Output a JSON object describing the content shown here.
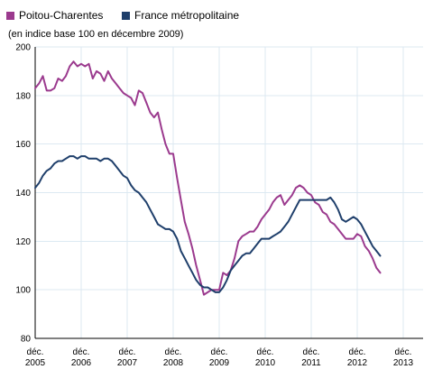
{
  "chart_data": {
    "type": "line",
    "title": "",
    "subtitle": "(en indice base 100 en décembre 2009)",
    "xlabel": "",
    "ylabel": "",
    "x_tick_labels": [
      [
        "déc.",
        "2005"
      ],
      [
        "déc.",
        "2006"
      ],
      [
        "déc.",
        "2007"
      ],
      [
        "déc.",
        "2008"
      ],
      [
        "déc.",
        "2009"
      ],
      [
        "déc.",
        "2010"
      ],
      [
        "déc.",
        "2011"
      ],
      [
        "déc.",
        "2012"
      ],
      [
        "déc.",
        "2013"
      ]
    ],
    "y_tick_labels": [
      "80",
      "100",
      "120",
      "140",
      "160",
      "180",
      "200"
    ],
    "y_ticks": [
      80,
      100,
      120,
      140,
      160,
      180,
      200
    ],
    "ylim": [
      80,
      200
    ],
    "xlim": [
      0,
      90
    ],
    "x_ticks": [
      0,
      12,
      24,
      36,
      48,
      60,
      72,
      84,
      96
    ],
    "grid": true,
    "legend_position": "top-left",
    "series": [
      {
        "name": "Poitou-Charentes",
        "color": "#9b3a8e",
        "x": [
          0,
          1,
          2,
          3,
          4,
          5,
          6,
          7,
          8,
          9,
          10,
          11,
          12,
          13,
          14,
          15,
          16,
          17,
          18,
          19,
          20,
          21,
          22,
          23,
          24,
          25,
          26,
          27,
          28,
          29,
          30,
          31,
          32,
          33,
          34,
          35,
          36,
          37,
          38,
          39,
          40,
          41,
          42,
          43,
          44,
          45,
          46,
          47,
          48,
          49,
          50,
          51,
          52,
          53,
          54,
          55,
          56,
          57,
          58,
          59,
          60,
          61,
          62,
          63,
          64,
          65,
          66,
          67,
          68,
          69,
          70,
          71,
          72,
          73,
          74,
          75,
          76,
          77,
          78,
          79,
          80,
          81,
          82,
          83,
          84,
          85,
          86,
          87,
          88,
          89,
          90
        ],
        "values": [
          183,
          185,
          188,
          182,
          182,
          183,
          187,
          186,
          188,
          192,
          194,
          192,
          193,
          192,
          193,
          187,
          190,
          189,
          186,
          190,
          187,
          185,
          183,
          181,
          180,
          179,
          176,
          182,
          181,
          177,
          173,
          171,
          173,
          166,
          160,
          156,
          156,
          146,
          137,
          128,
          123,
          117,
          110,
          104,
          98,
          99,
          100,
          100,
          100,
          107,
          106,
          108,
          113,
          120,
          122,
          123,
          124,
          124,
          126,
          129,
          131,
          133,
          136,
          138,
          139,
          135,
          137,
          139,
          142,
          143,
          142,
          140,
          139,
          136,
          135,
          132,
          131,
          128,
          127,
          125,
          123,
          121,
          121,
          121,
          123,
          122,
          118,
          116,
          113,
          109,
          107
        ]
      },
      {
        "name": "France métropolitaine",
        "color": "#1f3f6b",
        "x": [
          0,
          1,
          2,
          3,
          4,
          5,
          6,
          7,
          8,
          9,
          10,
          11,
          12,
          13,
          14,
          15,
          16,
          17,
          18,
          19,
          20,
          21,
          22,
          23,
          24,
          25,
          26,
          27,
          28,
          29,
          30,
          31,
          32,
          33,
          34,
          35,
          36,
          37,
          38,
          39,
          40,
          41,
          42,
          43,
          44,
          45,
          46,
          47,
          48,
          49,
          50,
          51,
          52,
          53,
          54,
          55,
          56,
          57,
          58,
          59,
          60,
          61,
          62,
          63,
          64,
          65,
          66,
          67,
          68,
          69,
          70,
          71,
          72,
          73,
          74,
          75,
          76,
          77,
          78,
          79,
          80,
          81,
          82,
          83,
          84,
          85,
          86,
          87,
          88,
          89,
          90
        ],
        "values": [
          142,
          144,
          147,
          149,
          150,
          152,
          153,
          153,
          154,
          155,
          155,
          154,
          155,
          155,
          154,
          154,
          154,
          153,
          154,
          154,
          153,
          151,
          149,
          147,
          146,
          143,
          141,
          140,
          138,
          136,
          133,
          130,
          127,
          126,
          125,
          125,
          124,
          121,
          116,
          113,
          110,
          107,
          104,
          102,
          101,
          101,
          100,
          99,
          99,
          101,
          104,
          108,
          110,
          112,
          114,
          115,
          115,
          117,
          119,
          121,
          121,
          121,
          122,
          123,
          124,
          126,
          128,
          131,
          134,
          137,
          137,
          137,
          137,
          137,
          137,
          137,
          137,
          138,
          136,
          133,
          129,
          128,
          129,
          130,
          129,
          127,
          124,
          121,
          118,
          116,
          114
        ]
      }
    ]
  }
}
